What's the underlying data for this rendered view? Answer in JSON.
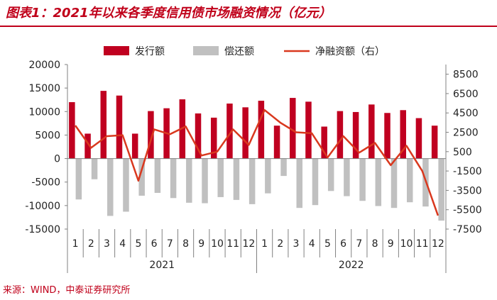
{
  "title": "图表1：2021年以来各季度信用债市场融资情况（亿元）",
  "source": "来源：WIND，中泰证券研究所",
  "colors": {
    "issuance": "#c00020",
    "repayment": "#c0c0c0",
    "net": "#d9381e",
    "axis": "#808080",
    "title": "#c0001a"
  },
  "chart_data": {
    "type": "bar",
    "title": "图表1：2021年以来各季度信用债市场融资情况（亿元）",
    "legend": [
      "发行额",
      "偿还额",
      "净融资额（右）"
    ],
    "legend_position": "top",
    "years": [
      "2021",
      "2022"
    ],
    "months": [
      "1",
      "2",
      "3",
      "4",
      "5",
      "6",
      "7",
      "8",
      "9",
      "10",
      "11",
      "12",
      "1",
      "2",
      "3",
      "4",
      "5",
      "6",
      "7",
      "8",
      "9",
      "10",
      "11",
      "12"
    ],
    "ylim_left": [
      -15000,
      20000
    ],
    "yticks_left": [
      "20000",
      "15000",
      "10000",
      "5000",
      "0",
      "-5000",
      "-10000",
      "-15000"
    ],
    "ylim_right": [
      -7500,
      9500
    ],
    "yticks_right": [
      "8500",
      "6500",
      "4500",
      "2500",
      "500",
      "-1500",
      "-3500",
      "-5500",
      "-7500"
    ],
    "series": [
      {
        "name": "发行额",
        "axis": "left",
        "type": "bar",
        "values": [
          12000,
          5300,
          14400,
          13400,
          5300,
          10100,
          10700,
          12600,
          9600,
          8700,
          11700,
          10900,
          12300,
          7000,
          12900,
          12100,
          6800,
          10100,
          9900,
          11500,
          9700,
          10300,
          8600,
          7000
        ]
      },
      {
        "name": "偿还额",
        "axis": "left",
        "type": "bar",
        "values": [
          -8700,
          -4400,
          -12200,
          -11300,
          -7900,
          -7300,
          -8400,
          -9400,
          -9500,
          -8200,
          -8800,
          -9700,
          -7400,
          -3700,
          -10500,
          -9900,
          -6900,
          -8000,
          -9000,
          -10100,
          -10500,
          -9300,
          -10200,
          -13200
        ]
      },
      {
        "name": "净融资额（右）",
        "axis": "right",
        "type": "line",
        "values": [
          3200,
          900,
          2100,
          2200,
          -2500,
          2800,
          2300,
          3100,
          100,
          500,
          2800,
          1200,
          4800,
          3500,
          2500,
          2400,
          -100,
          2100,
          400,
          1400,
          -900,
          1100,
          -1500,
          -6100
        ]
      }
    ]
  }
}
